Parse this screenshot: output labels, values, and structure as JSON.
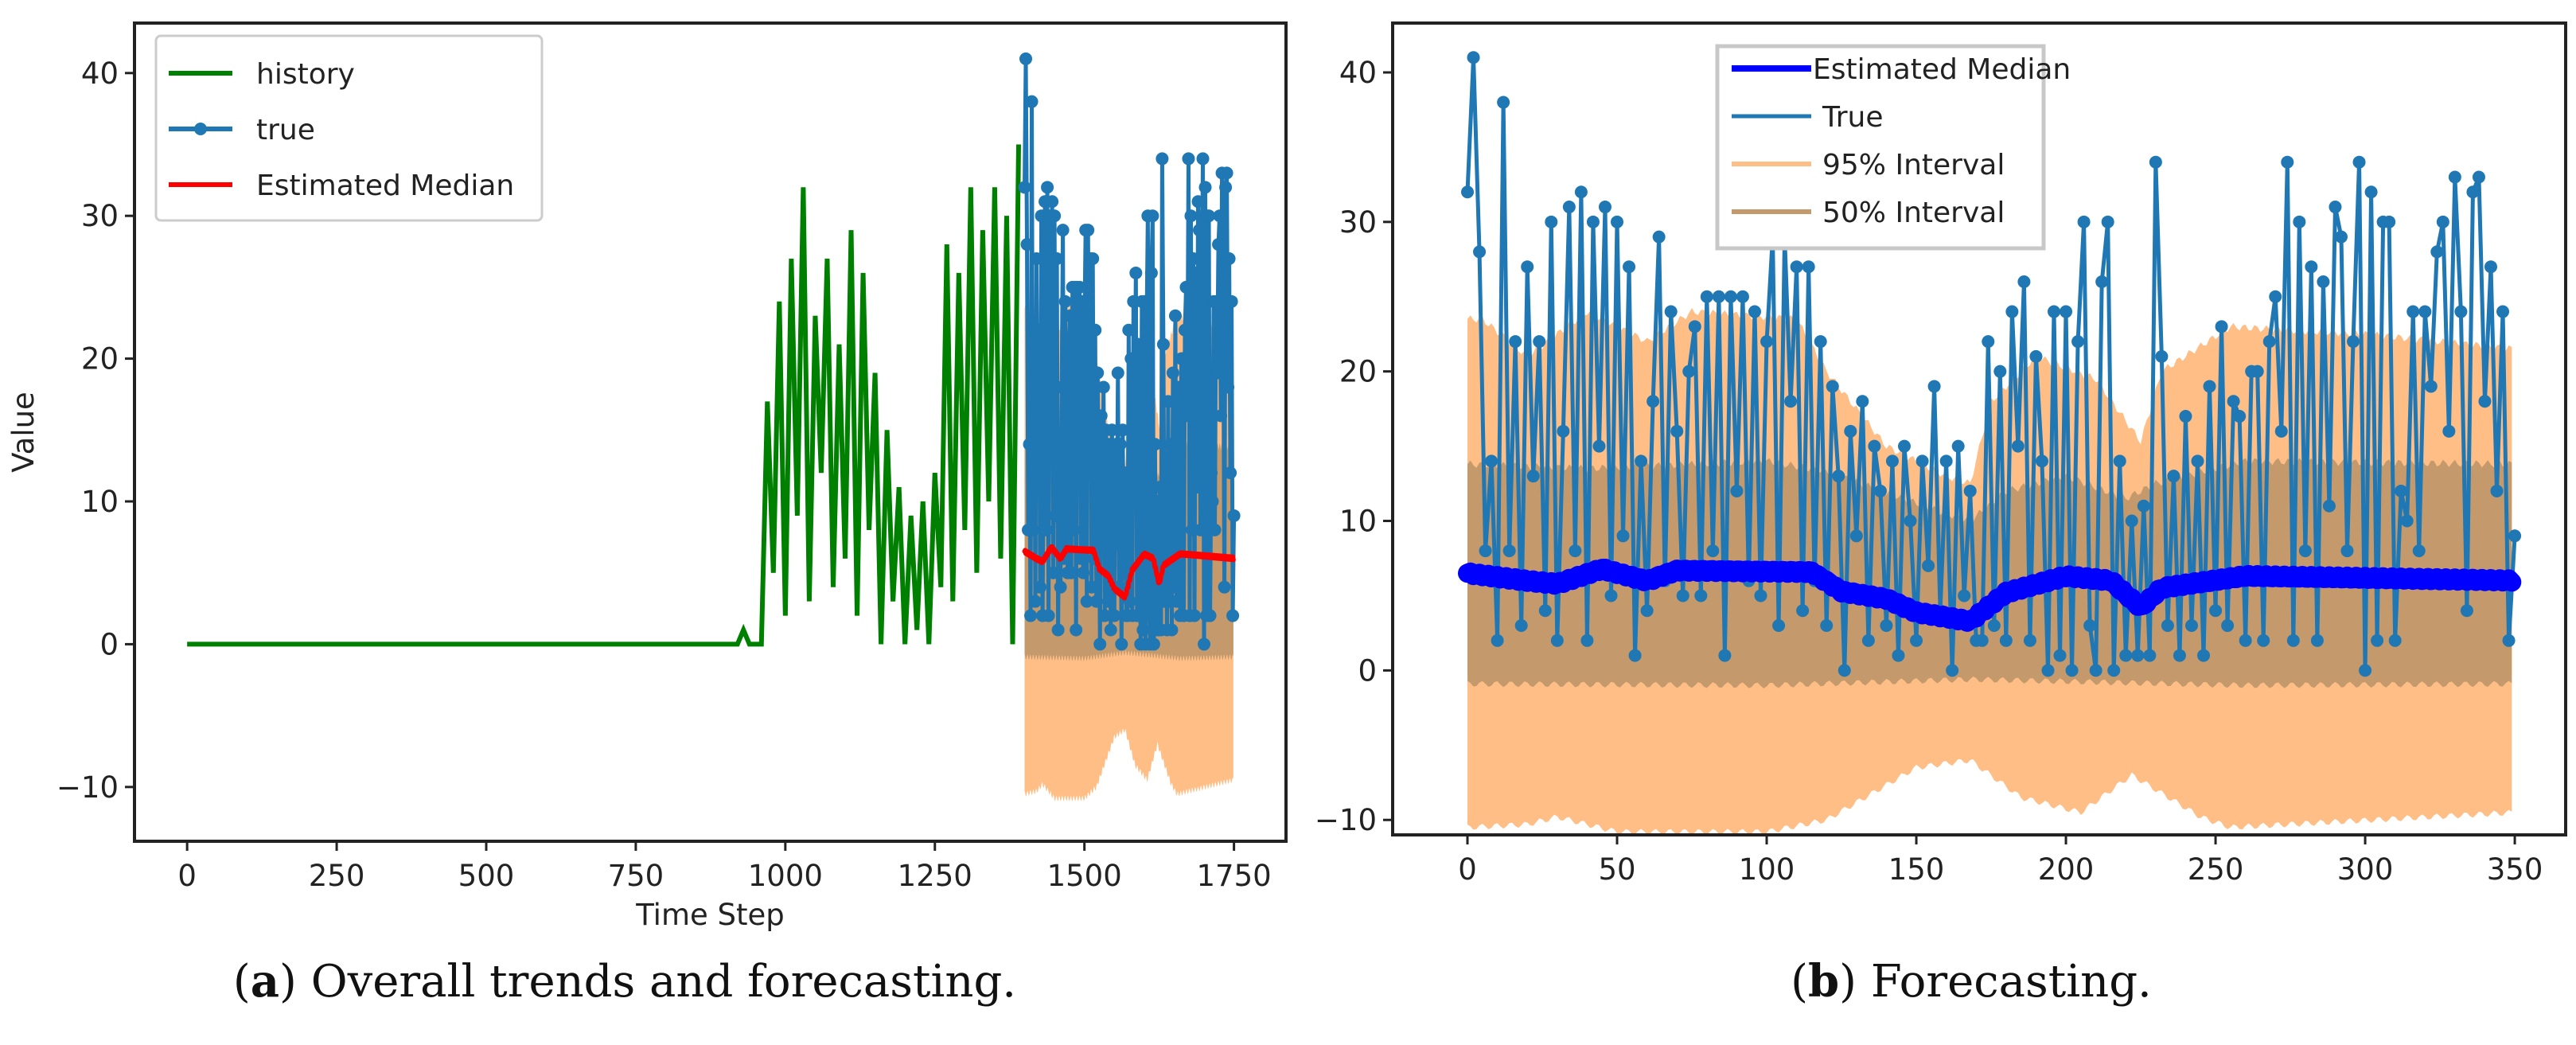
{
  "chart_data": [
    {
      "type": "line",
      "panel": "a",
      "caption_letter": "a",
      "caption_text": "Overall trends and forecasting.",
      "xlabel": "Time Step",
      "ylabel": "Value",
      "xlim": [
        -88,
        1837
      ],
      "ylim": [
        -13.8,
        43.5
      ],
      "xticks": [
        0,
        250,
        500,
        750,
        1000,
        1250,
        1500,
        1750
      ],
      "yticks": [
        -10,
        0,
        10,
        20,
        30,
        40
      ],
      "legend_position": "top-left",
      "legend": [
        "history",
        "true",
        "Estimated Median"
      ],
      "colors": {
        "history": "#008000",
        "true": "#1f77b4",
        "median": "#ff0000",
        "band95": "#ffbe86",
        "band50": "#c49a6c"
      },
      "history": {
        "x_start": 0,
        "x_step": 10,
        "values": [
          0,
          0,
          0,
          0,
          0,
          0,
          0,
          0,
          0,
          0,
          0,
          0,
          0,
          0,
          0,
          0,
          0,
          0,
          0,
          0,
          0,
          0,
          0,
          0,
          0,
          0,
          0,
          0,
          0,
          0,
          0,
          0,
          0,
          0,
          0,
          0,
          0,
          0,
          0,
          0,
          0,
          0,
          0,
          0,
          0,
          0,
          0,
          0,
          0,
          0,
          0,
          0,
          0,
          0,
          0,
          0,
          0,
          0,
          0,
          0,
          0,
          0,
          0,
          0,
          0,
          0,
          0,
          0,
          0,
          0,
          0,
          0,
          0,
          0,
          0,
          0,
          0,
          0,
          0,
          0,
          0,
          0,
          0,
          0,
          0,
          0,
          0,
          0,
          0,
          0,
          0,
          0,
          0,
          1,
          0,
          0,
          0,
          17,
          5,
          24,
          2,
          27,
          9,
          32,
          3,
          23,
          12,
          27,
          4,
          21,
          6,
          29,
          2,
          26,
          8,
          19,
          0,
          15,
          3,
          11,
          0,
          9,
          1,
          10,
          0,
          12,
          4,
          28,
          3,
          26,
          8,
          32,
          5,
          29,
          10,
          32,
          6,
          30,
          0,
          35
        ]
      },
      "true_x_offset": 1400
    },
    {
      "type": "line",
      "panel": "b",
      "caption_letter": "b",
      "caption_text": "Forecasting.",
      "xlabel": "",
      "ylabel": "",
      "xlim": [
        -25,
        367
      ],
      "ylim": [
        -11.0,
        43.3
      ],
      "xticks": [
        0,
        50,
        100,
        150,
        200,
        250,
        300,
        350
      ],
      "yticks": [
        -10,
        0,
        10,
        20,
        30,
        40
      ],
      "legend_position": "top-center",
      "legend": [
        "Estimated Median",
        "True",
        "95% Interval",
        "50% Interval"
      ],
      "colors": {
        "true": "#1f77b4",
        "median": "#0000ff",
        "band95": "#ffbe86",
        "band50": "#c49a6c"
      }
    }
  ],
  "forecast": {
    "true": {
      "x_start": 0,
      "x_step": 2,
      "values": [
        32,
        41,
        28,
        8,
        14,
        2,
        38,
        8,
        22,
        3,
        27,
        13,
        22,
        4,
        30,
        2,
        16,
        31,
        8,
        32,
        2,
        30,
        15,
        31,
        5,
        30,
        9,
        27,
        1,
        14,
        4,
        18,
        29,
        6,
        24,
        16,
        5,
        20,
        23,
        5,
        25,
        8,
        25,
        1,
        25,
        12,
        25,
        6,
        24,
        5,
        22,
        29,
        3,
        29,
        18,
        27,
        4,
        27,
        6,
        22,
        3,
        19,
        13,
        0,
        16,
        9,
        18,
        2,
        15,
        12,
        3,
        14,
        1,
        15,
        10,
        2,
        14,
        7,
        19,
        4,
        14,
        0,
        15,
        5,
        12,
        2,
        2,
        22,
        3,
        20,
        2,
        24,
        15,
        26,
        2,
        21,
        14,
        0,
        24,
        1,
        24,
        0,
        22,
        30,
        3,
        0,
        26,
        30,
        0,
        14,
        1,
        10,
        1,
        11,
        1,
        34,
        21,
        3,
        13,
        1,
        17,
        3,
        14,
        1,
        19,
        4,
        23,
        3,
        18,
        17,
        2,
        20,
        20,
        2,
        22,
        25,
        16,
        34,
        2,
        30,
        8,
        27,
        2,
        26,
        11,
        31,
        29,
        8,
        22,
        34,
        0,
        32,
        2,
        30,
        30,
        2,
        12,
        10,
        24,
        8,
        24,
        19,
        28,
        30,
        16,
        33,
        24,
        4,
        32,
        33,
        18,
        27,
        12,
        24,
        2,
        9
      ]
    },
    "median": {
      "x": [
        0,
        20,
        30,
        45,
        60,
        70,
        115,
        125,
        140,
        150,
        168,
        180,
        200,
        215,
        225,
        232,
        260,
        350
      ],
      "y": [
        6.5,
        6.0,
        5.8,
        6.8,
        6.0,
        6.7,
        6.6,
        5.3,
        4.8,
        3.9,
        3.3,
        5.2,
        6.3,
        6.0,
        4.2,
        5.5,
        6.3,
        6.0
      ]
    },
    "interval95": {
      "upper": {
        "x": [
          0,
          5,
          20,
          40,
          60,
          75,
          110,
          120,
          140,
          160,
          168,
          175,
          190,
          210,
          225,
          232,
          255,
          270,
          300,
          350
        ],
        "y": [
          23.5,
          23.5,
          21,
          24,
          22,
          24,
          23.5,
          20,
          15,
          13,
          12.5,
          18,
          21,
          19.5,
          15.3,
          20,
          23,
          22.8,
          22.5,
          21.5
        ]
      },
      "lower": {
        "x": [
          0,
          20,
          30,
          50,
          100,
          120,
          150,
          168,
          185,
          205,
          222,
          245,
          255,
          350
        ],
        "y": [
          -10.5,
          -10.3,
          -9.8,
          -10.8,
          -10.8,
          -10,
          -6.5,
          -6,
          -8.5,
          -9.5,
          -7,
          -9.8,
          -10.5,
          -9.5
        ]
      }
    },
    "interval50": {
      "upper": {
        "x": [
          0,
          40,
          100,
          120,
          160,
          168,
          180,
          200,
          220,
          230,
          260,
          350
        ],
        "y": [
          13.8,
          13.5,
          14,
          13.3,
          10.5,
          10,
          12,
          13,
          11.5,
          12.5,
          14,
          13.8
        ]
      },
      "lower": {
        "x": [
          0,
          100,
          168,
          260,
          350
        ],
        "y": [
          -0.9,
          -1.0,
          -0.6,
          -1.0,
          -0.9
        ]
      }
    }
  }
}
